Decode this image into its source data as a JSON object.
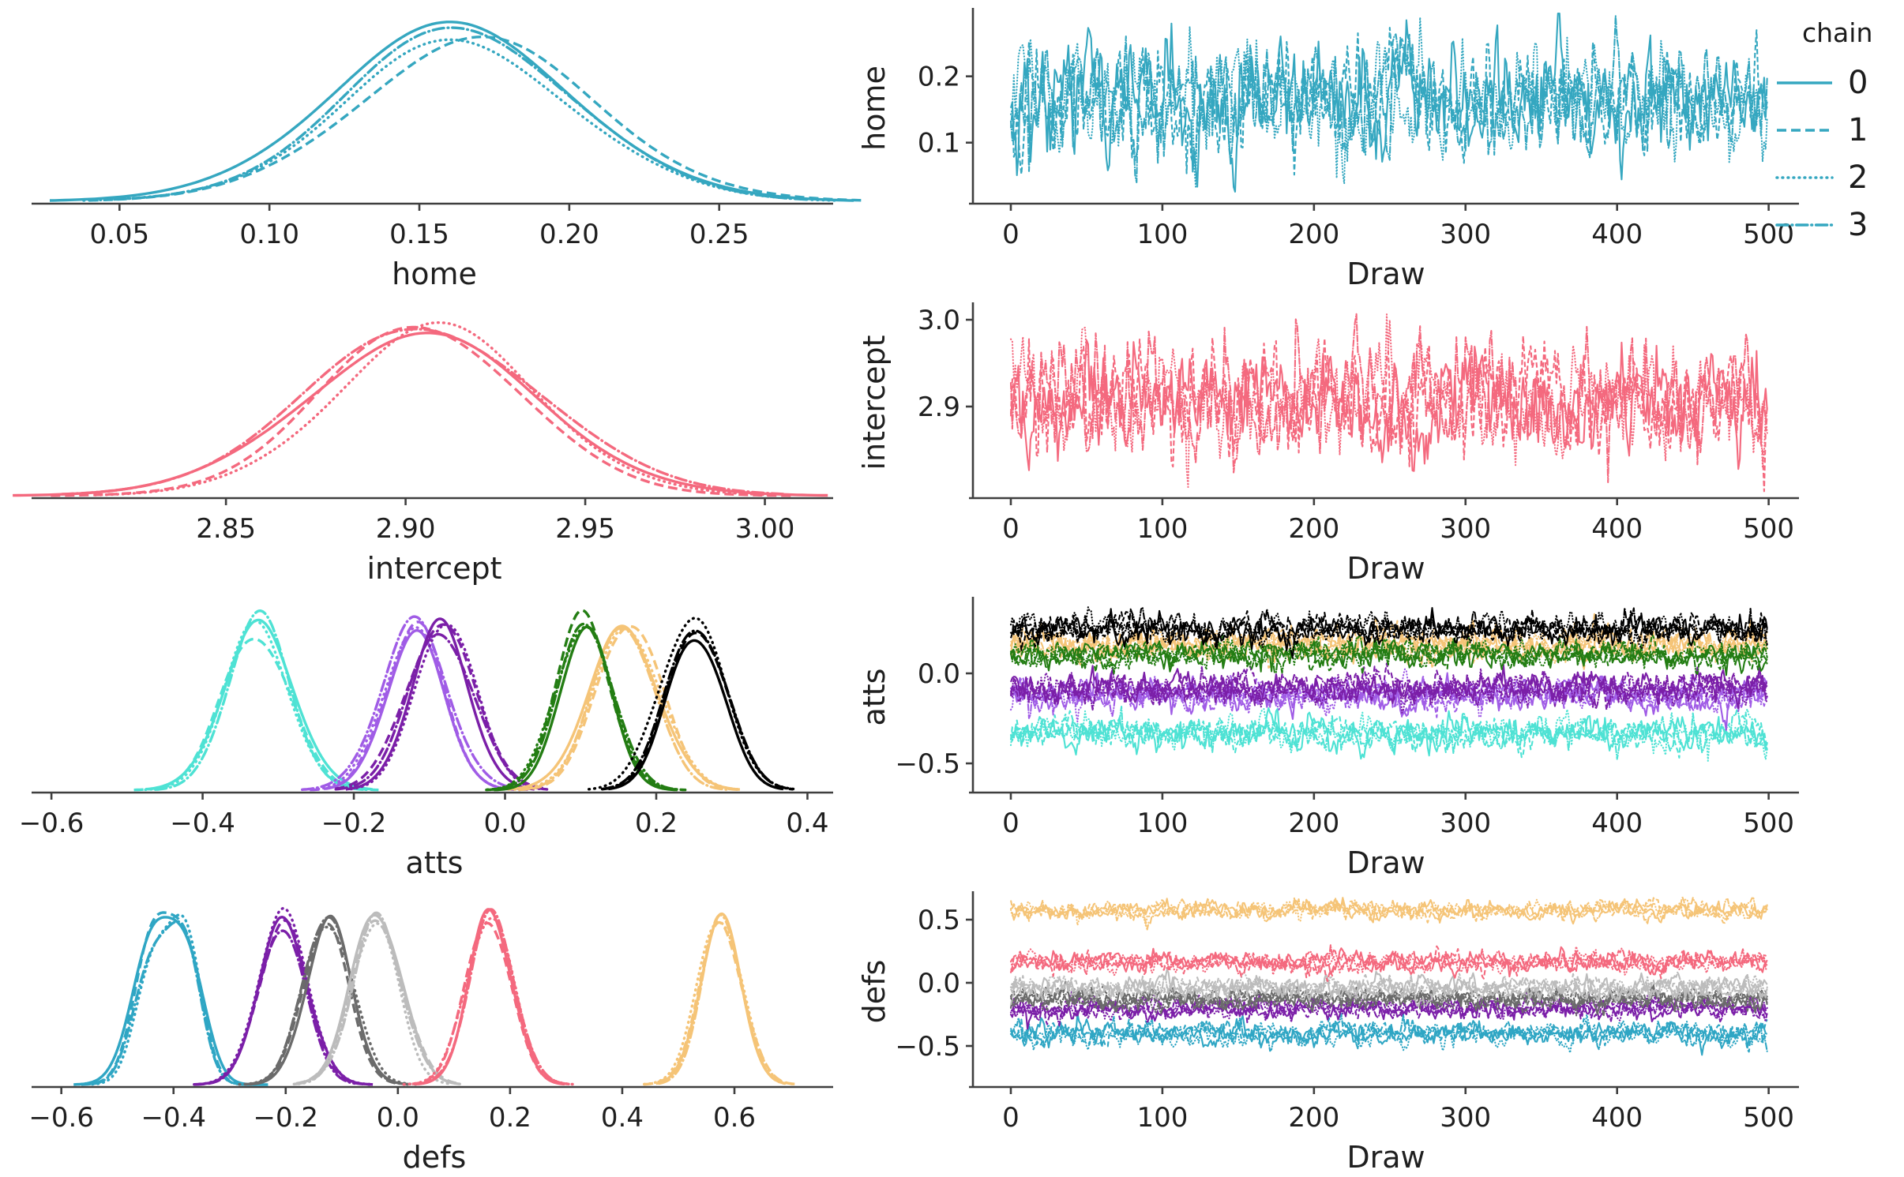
{
  "figure": {
    "background": "#ffffff",
    "params": [
      "home",
      "intercept",
      "atts",
      "defs"
    ],
    "legend": {
      "title": "chain",
      "color": "#35A7C0",
      "entries": [
        {
          "label": "0",
          "linestyle": "solid"
        },
        {
          "label": "1",
          "linestyle": "dashed"
        },
        {
          "label": "2",
          "linestyle": "dotted"
        },
        {
          "label": "3",
          "linestyle": "dashdot"
        }
      ]
    }
  },
  "chart_data": [
    {
      "id": "kde-home",
      "type": "kde",
      "xlabel": "home",
      "grid": false,
      "chains": 4,
      "xlim": [
        0.022,
        0.288
      ],
      "xticks": [
        0.05,
        0.1,
        0.15,
        0.2,
        0.25
      ],
      "xticklabels": [
        "0.05",
        "0.10",
        "0.15",
        "0.20",
        "0.25"
      ],
      "series": [
        {
          "name": "home",
          "color": "#35A7C0",
          "mean": 0.165,
          "sd": 0.042
        }
      ]
    },
    {
      "id": "trace-home",
      "type": "trace",
      "xlabel": "Draw",
      "ylabel": "home",
      "grid": false,
      "draws": 500,
      "chains": 4,
      "xlim": [
        -25,
        520
      ],
      "xticks": [
        0,
        100,
        200,
        300,
        400,
        500
      ],
      "xticklabels": [
        "0",
        "100",
        "200",
        "300",
        "400",
        "500"
      ],
      "ylim": [
        0.008,
        0.296
      ],
      "yticks": [
        0.1,
        0.2
      ],
      "yticklabels": [
        "0.1",
        "0.2"
      ],
      "series": [
        {
          "name": "home",
          "color": "#35A7C0",
          "mean": 0.165,
          "sd": 0.042
        }
      ]
    },
    {
      "id": "kde-intercept",
      "type": "kde",
      "xlabel": "intercept",
      "grid": false,
      "chains": 4,
      "xlim": [
        2.797,
        3.019
      ],
      "xticks": [
        2.85,
        2.9,
        2.95,
        3.0
      ],
      "xticklabels": [
        "2.85",
        "2.90",
        "2.95",
        "3.00"
      ],
      "series": [
        {
          "name": "intercept",
          "color": "#F4697E",
          "mean": 2.906,
          "sd": 0.031
        }
      ]
    },
    {
      "id": "trace-intercept",
      "type": "trace",
      "xlabel": "Draw",
      "ylabel": "intercept",
      "grid": false,
      "draws": 500,
      "chains": 4,
      "xlim": [
        -25,
        520
      ],
      "xticks": [
        0,
        100,
        200,
        300,
        400,
        500
      ],
      "xticklabels": [
        "0",
        "100",
        "200",
        "300",
        "400",
        "500"
      ],
      "ylim": [
        2.7945,
        3.0146
      ],
      "yticks": [
        2.9,
        3.0
      ],
      "yticklabels": [
        "2.9",
        "3.0"
      ],
      "series": [
        {
          "name": "intercept",
          "color": "#F4697E",
          "mean": 2.906,
          "sd": 0.031
        }
      ]
    },
    {
      "id": "kde-atts",
      "type": "kde",
      "xlabel": "atts",
      "grid": false,
      "chains": 4,
      "xlim": [
        -0.621,
        0.434
      ],
      "xticks": [
        -0.6,
        -0.4,
        -0.2,
        0.0,
        0.2,
        0.4
      ],
      "xticklabels": [
        "−0.6",
        "−0.4",
        "−0.2",
        "0.0",
        "0.2",
        "0.4"
      ],
      "series": [
        {
          "name": "atts[0]",
          "color": "#4EE2D4",
          "mean": -0.328,
          "sd": 0.045
        },
        {
          "name": "atts[1]",
          "color": "#A05CE6",
          "mean": -0.12,
          "sd": 0.042
        },
        {
          "name": "atts[2]",
          "color": "#7B1FA8",
          "mean": -0.082,
          "sd": 0.042
        },
        {
          "name": "atts[3]",
          "color": "#F5C477",
          "mean": 0.16,
          "sd": 0.042
        },
        {
          "name": "atts[4]",
          "color": "#237D13",
          "mean": 0.105,
          "sd": 0.037
        },
        {
          "name": "atts[5]",
          "color": "#000000",
          "mean": 0.25,
          "sd": 0.04
        }
      ]
    },
    {
      "id": "trace-atts",
      "type": "trace",
      "xlabel": "Draw",
      "ylabel": "atts",
      "grid": false,
      "draws": 500,
      "chains": 4,
      "xlim": [
        -25,
        520
      ],
      "xticks": [
        0,
        100,
        200,
        300,
        400,
        500
      ],
      "xticklabels": [
        "0",
        "100",
        "200",
        "300",
        "400",
        "500"
      ],
      "ylim": [
        -0.662,
        0.399
      ],
      "yticks": [
        -0.5,
        0.0
      ],
      "yticklabels": [
        "−0.5",
        "0.0"
      ],
      "series": [
        {
          "name": "atts[0]",
          "color": "#4EE2D4",
          "mean": -0.328,
          "sd": 0.045
        },
        {
          "name": "atts[1]",
          "color": "#A05CE6",
          "mean": -0.12,
          "sd": 0.042
        },
        {
          "name": "atts[2]",
          "color": "#7B1FA8",
          "mean": -0.082,
          "sd": 0.042
        },
        {
          "name": "atts[3]",
          "color": "#F5C477",
          "mean": 0.16,
          "sd": 0.042
        },
        {
          "name": "atts[4]",
          "color": "#237D13",
          "mean": 0.105,
          "sd": 0.037
        },
        {
          "name": "atts[5]",
          "color": "#000000",
          "mean": 0.25,
          "sd": 0.04
        }
      ]
    },
    {
      "id": "kde-defs",
      "type": "kde",
      "xlabel": "defs",
      "grid": false,
      "chains": 4,
      "xlim": [
        -0.646,
        0.776
      ],
      "xticks": [
        -0.6,
        -0.4,
        -0.2,
        0.0,
        0.2,
        0.4,
        0.6
      ],
      "xticklabels": [
        "−0.6",
        "−0.4",
        "−0.2",
        "0.0",
        "0.2",
        "0.4",
        "0.6"
      ],
      "series": [
        {
          "name": "defs[0]",
          "color": "#2FA6C4",
          "mean": -0.4,
          "sd": 0.046,
          "bimodal": true
        },
        {
          "name": "defs[1]",
          "color": "#7B1FA8",
          "mean": -0.205,
          "sd": 0.04
        },
        {
          "name": "defs[2]",
          "color": "#6B6B6B",
          "mean": -0.125,
          "sd": 0.04
        },
        {
          "name": "defs[3]",
          "color": "#BCBCBC",
          "mean": -0.04,
          "sd": 0.043
        },
        {
          "name": "defs[4]",
          "color": "#F4697E",
          "mean": 0.165,
          "sd": 0.042
        },
        {
          "name": "defs[5]",
          "color": "#F5C477",
          "mean": 0.575,
          "sd": 0.036
        }
      ]
    },
    {
      "id": "trace-defs",
      "type": "trace",
      "xlabel": "Draw",
      "ylabel": "defs",
      "grid": false,
      "draws": 500,
      "chains": 4,
      "xlim": [
        -25,
        520
      ],
      "xticks": [
        0,
        100,
        200,
        300,
        400,
        500
      ],
      "xticklabels": [
        "0",
        "100",
        "200",
        "300",
        "400",
        "500"
      ],
      "ylim": [
        -0.825,
        0.6875
      ],
      "yticks": [
        -0.5,
        0.0,
        0.5
      ],
      "yticklabels": [
        "−0.5",
        "0.0",
        "0.5"
      ],
      "series": [
        {
          "name": "defs[0]",
          "color": "#2FA6C4",
          "mean": -0.4,
          "sd": 0.046
        },
        {
          "name": "defs[1]",
          "color": "#7B1FA8",
          "mean": -0.205,
          "sd": 0.04
        },
        {
          "name": "defs[2]",
          "color": "#6B6B6B",
          "mean": -0.125,
          "sd": 0.04
        },
        {
          "name": "defs[3]",
          "color": "#BCBCBC",
          "mean": -0.04,
          "sd": 0.043
        },
        {
          "name": "defs[4]",
          "color": "#F4697E",
          "mean": 0.165,
          "sd": 0.042
        },
        {
          "name": "defs[5]",
          "color": "#F5C477",
          "mean": 0.575,
          "sd": 0.036
        }
      ]
    }
  ]
}
